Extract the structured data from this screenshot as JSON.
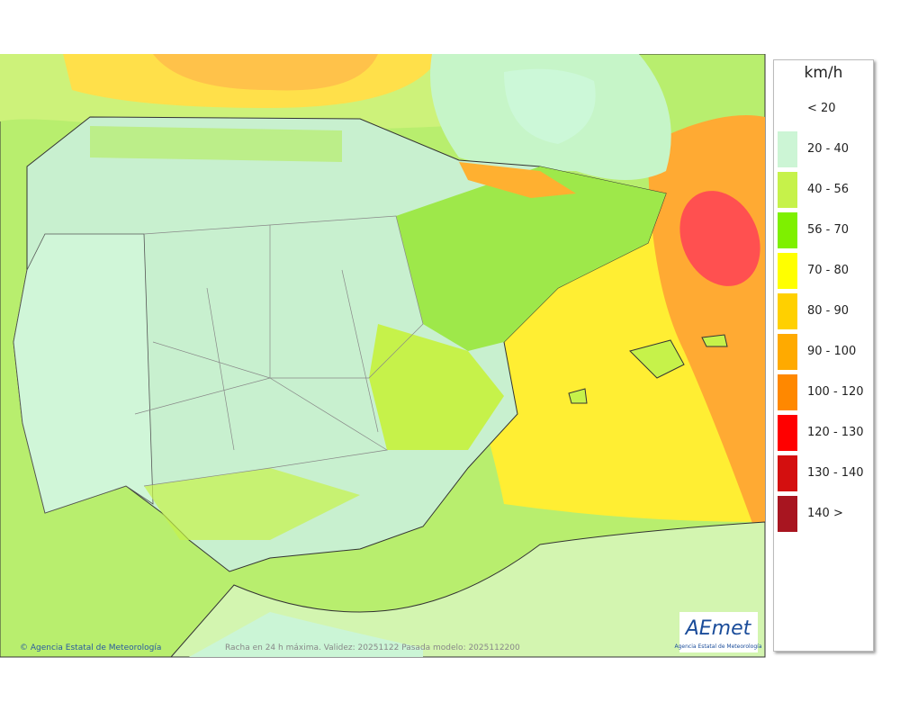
{
  "legend": {
    "unit": "km/h",
    "items": [
      {
        "label": "< 20"
      },
      {
        "label": "20 - 40",
        "color": "#ccf5d5"
      },
      {
        "label": "40 - 56",
        "color": "#c6f24a"
      },
      {
        "label": "56 - 70",
        "color": "#7ef000"
      },
      {
        "label": "70 - 80",
        "color": "#ffff00"
      },
      {
        "label": "80 - 90",
        "color": "#ffd000"
      },
      {
        "label": "90 - 100",
        "color": "#ffaa00"
      },
      {
        "label": "100 - 120",
        "color": "#ff8800"
      },
      {
        "label": "120 - 130",
        "color": "#ff0000"
      },
      {
        "label": "130 - 140",
        "color": "#d40f0f"
      },
      {
        "label": "140 >",
        "color": "#a81520"
      }
    ]
  },
  "footer": {
    "credit": "© Agencia Estatal de Meteorología",
    "caption": "Racha en 24 h máxima. Validez: 20251122 Pasada modelo: 2025112200"
  },
  "logo": {
    "name": "AEmet",
    "subtitle": "Agencia Estatal de Meteorología"
  }
}
